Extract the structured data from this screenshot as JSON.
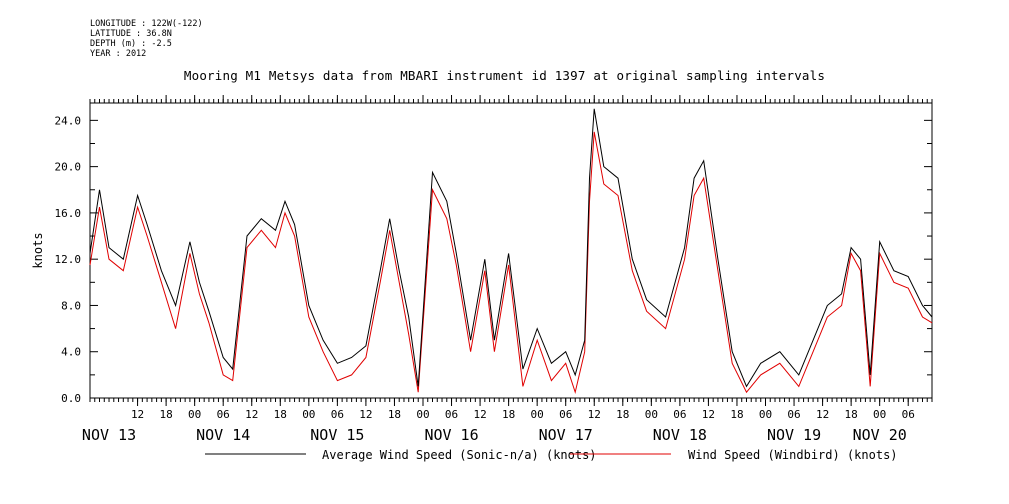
{
  "meta": {
    "longitude": "LONGITUDE : 122W(-122)",
    "latitude": "LATITUDE : 36.8N",
    "depth": "DEPTH (m) : -2.5",
    "year": "YEAR : 2012"
  },
  "colors": {
    "sonic": "#000000",
    "windbird": "#e00000"
  },
  "chart_data": {
    "type": "line",
    "title": "Mooring M1 Metsys data from MBARI instrument id 1397 at original sampling intervals",
    "ylabel": "knots",
    "xlabel": "",
    "ylim": [
      0,
      25.5
    ],
    "xlim": [
      "2012-11-13T02:00",
      "2012-11-20T11:00"
    ],
    "y_ticks": [
      "0.0",
      "4.0",
      "8.0",
      "12.0",
      "16.0",
      "20.0",
      "24.0"
    ],
    "hour_ticks": [
      {
        "hour": "12",
        "x": "2012-11-13T12:00"
      },
      {
        "hour": "18",
        "x": "2012-11-13T18:00"
      },
      {
        "hour": "00",
        "x": "2012-11-14T00:00"
      },
      {
        "hour": "06",
        "x": "2012-11-14T06:00"
      },
      {
        "hour": "12",
        "x": "2012-11-14T12:00"
      },
      {
        "hour": "18",
        "x": "2012-11-14T18:00"
      },
      {
        "hour": "00",
        "x": "2012-11-15T00:00"
      },
      {
        "hour": "06",
        "x": "2012-11-15T06:00"
      },
      {
        "hour": "12",
        "x": "2012-11-15T12:00"
      },
      {
        "hour": "18",
        "x": "2012-11-15T18:00"
      },
      {
        "hour": "00",
        "x": "2012-11-16T00:00"
      },
      {
        "hour": "06",
        "x": "2012-11-16T06:00"
      },
      {
        "hour": "12",
        "x": "2012-11-16T12:00"
      },
      {
        "hour": "18",
        "x": "2012-11-16T18:00"
      },
      {
        "hour": "00",
        "x": "2012-11-17T00:00"
      },
      {
        "hour": "06",
        "x": "2012-11-17T06:00"
      },
      {
        "hour": "12",
        "x": "2012-11-17T12:00"
      },
      {
        "hour": "18",
        "x": "2012-11-17T18:00"
      },
      {
        "hour": "00",
        "x": "2012-11-18T00:00"
      },
      {
        "hour": "06",
        "x": "2012-11-18T06:00"
      },
      {
        "hour": "12",
        "x": "2012-11-18T12:00"
      },
      {
        "hour": "18",
        "x": "2012-11-18T18:00"
      },
      {
        "hour": "00",
        "x": "2012-11-19T00:00"
      },
      {
        "hour": "06",
        "x": "2012-11-19T06:00"
      },
      {
        "hour": "12",
        "x": "2012-11-19T12:00"
      },
      {
        "hour": "18",
        "x": "2012-11-19T18:00"
      },
      {
        "hour": "00",
        "x": "2012-11-20T00:00"
      },
      {
        "hour": "06",
        "x": "2012-11-20T06:00"
      }
    ],
    "day_labels": [
      {
        "label": "NOV 13",
        "x": "2012-11-13T06:00"
      },
      {
        "label": "NOV 14",
        "x": "2012-11-14T06:00"
      },
      {
        "label": "NOV 15",
        "x": "2012-11-15T06:00"
      },
      {
        "label": "NOV 16",
        "x": "2012-11-16T06:00"
      },
      {
        "label": "NOV 17",
        "x": "2012-11-17T06:00"
      },
      {
        "label": "NOV 18",
        "x": "2012-11-18T06:00"
      },
      {
        "label": "NOV 19",
        "x": "2012-11-19T06:00"
      },
      {
        "label": "NOV 20",
        "x": "2012-11-20T00:00"
      }
    ],
    "legend_position": "bottom",
    "series": [
      {
        "name": "Average Wind Speed (Sonic-n/a) (knots)",
        "color": "#000000",
        "x": [
          "2012-11-13T02:00",
          "2012-11-13T04:00",
          "2012-11-13T06:00",
          "2012-11-13T09:00",
          "2012-11-13T12:00",
          "2012-11-13T14:00",
          "2012-11-13T17:00",
          "2012-11-13T20:00",
          "2012-11-13T23:00",
          "2012-11-14T01:00",
          "2012-11-14T03:00",
          "2012-11-14T06:00",
          "2012-11-14T08:00",
          "2012-11-14T11:00",
          "2012-11-14T14:00",
          "2012-11-14T17:00",
          "2012-11-14T19:00",
          "2012-11-14T21:00",
          "2012-11-15T00:00",
          "2012-11-15T03:00",
          "2012-11-15T06:00",
          "2012-11-15T09:00",
          "2012-11-15T12:00",
          "2012-11-15T15:00",
          "2012-11-15T17:00",
          "2012-11-15T19:00",
          "2012-11-15T21:00",
          "2012-11-15T23:00",
          "2012-11-16T02:00",
          "2012-11-16T05:00",
          "2012-11-16T07:00",
          "2012-11-16T10:00",
          "2012-11-16T13:00",
          "2012-11-16T15:00",
          "2012-11-16T18:00",
          "2012-11-16T21:00",
          "2012-11-17T00:00",
          "2012-11-17T03:00",
          "2012-11-17T06:00",
          "2012-11-17T08:00",
          "2012-11-17T10:00",
          "2012-11-17T11:00",
          "2012-11-17T12:00",
          "2012-11-17T14:00",
          "2012-11-17T17:00",
          "2012-11-17T20:00",
          "2012-11-17T23:00",
          "2012-11-18T03:00",
          "2012-11-18T07:00",
          "2012-11-18T09:00",
          "2012-11-18T11:00",
          "2012-11-18T14:00",
          "2012-11-18T17:00",
          "2012-11-18T20:00",
          "2012-11-18T23:00",
          "2012-11-19T03:00",
          "2012-11-19T07:00",
          "2012-11-19T10:00",
          "2012-11-19T13:00",
          "2012-11-19T16:00",
          "2012-11-19T18:00",
          "2012-11-19T20:00",
          "2012-11-19T22:00",
          "2012-11-20T00:00",
          "2012-11-20T03:00",
          "2012-11-20T06:00",
          "2012-11-20T09:00",
          "2012-11-20T11:00"
        ],
        "values": [
          12.5,
          18.0,
          13.0,
          12.0,
          17.5,
          15.0,
          11.0,
          8.0,
          13.5,
          10.0,
          7.5,
          3.5,
          2.5,
          14.0,
          15.5,
          14.5,
          17.0,
          15.0,
          8.0,
          5.0,
          3.0,
          3.5,
          4.5,
          11.0,
          15.5,
          11.0,
          7.0,
          1.0,
          19.5,
          17.0,
          12.5,
          5.0,
          12.0,
          5.0,
          12.5,
          2.5,
          6.0,
          3.0,
          4.0,
          2.0,
          5.0,
          19.0,
          25.0,
          20.0,
          19.0,
          12.0,
          8.5,
          7.0,
          13.0,
          19.0,
          20.5,
          12.0,
          4.0,
          1.0,
          3.0,
          4.0,
          2.0,
          5.0,
          8.0,
          9.0,
          13.0,
          12.0,
          2.0,
          13.5,
          11.0,
          10.5,
          8.0,
          7.0
        ]
      },
      {
        "name": "Wind Speed (Windbird) (knots)",
        "color": "#e00000",
        "x": [
          "2012-11-13T02:00",
          "2012-11-13T04:00",
          "2012-11-13T06:00",
          "2012-11-13T09:00",
          "2012-11-13T12:00",
          "2012-11-13T14:00",
          "2012-11-13T17:00",
          "2012-11-13T20:00",
          "2012-11-13T23:00",
          "2012-11-14T01:00",
          "2012-11-14T03:00",
          "2012-11-14T06:00",
          "2012-11-14T08:00",
          "2012-11-14T11:00",
          "2012-11-14T14:00",
          "2012-11-14T17:00",
          "2012-11-14T19:00",
          "2012-11-14T21:00",
          "2012-11-15T00:00",
          "2012-11-15T03:00",
          "2012-11-15T06:00",
          "2012-11-15T09:00",
          "2012-11-15T12:00",
          "2012-11-15T15:00",
          "2012-11-15T17:00",
          "2012-11-15T19:00",
          "2012-11-15T21:00",
          "2012-11-15T23:00",
          "2012-11-16T02:00",
          "2012-11-16T05:00",
          "2012-11-16T07:00",
          "2012-11-16T10:00",
          "2012-11-16T13:00",
          "2012-11-16T15:00",
          "2012-11-16T18:00",
          "2012-11-16T21:00",
          "2012-11-17T00:00",
          "2012-11-17T03:00",
          "2012-11-17T06:00",
          "2012-11-17T08:00",
          "2012-11-17T10:00",
          "2012-11-17T11:00",
          "2012-11-17T12:00",
          "2012-11-17T14:00",
          "2012-11-17T17:00",
          "2012-11-17T20:00",
          "2012-11-17T23:00",
          "2012-11-18T03:00",
          "2012-11-18T07:00",
          "2012-11-18T09:00",
          "2012-11-18T11:00",
          "2012-11-18T14:00",
          "2012-11-18T17:00",
          "2012-11-18T20:00",
          "2012-11-18T23:00",
          "2012-11-19T03:00",
          "2012-11-19T07:00",
          "2012-11-19T10:00",
          "2012-11-19T13:00",
          "2012-11-19T16:00",
          "2012-11-19T18:00",
          "2012-11-19T20:00",
          "2012-11-19T22:00",
          "2012-11-20T00:00",
          "2012-11-20T03:00",
          "2012-11-20T06:00",
          "2012-11-20T09:00",
          "2012-11-20T11:00"
        ],
        "values": [
          11.5,
          16.5,
          12.0,
          11.0,
          16.5,
          14.0,
          10.0,
          6.0,
          12.5,
          9.0,
          6.5,
          2.0,
          1.5,
          13.0,
          14.5,
          13.0,
          16.0,
          14.0,
          7.0,
          4.0,
          1.5,
          2.0,
          3.5,
          10.0,
          14.5,
          10.0,
          5.5,
          0.5,
          18.0,
          15.5,
          11.5,
          4.0,
          11.0,
          4.0,
          11.5,
          1.0,
          5.0,
          1.5,
          3.0,
          0.5,
          4.0,
          17.0,
          23.0,
          18.5,
          17.5,
          11.0,
          7.5,
          6.0,
          12.0,
          17.5,
          19.0,
          11.0,
          3.0,
          0.5,
          2.0,
          3.0,
          1.0,
          4.0,
          7.0,
          8.0,
          12.5,
          11.0,
          1.0,
          12.5,
          10.0,
          9.5,
          7.0,
          6.5
        ]
      }
    ]
  }
}
